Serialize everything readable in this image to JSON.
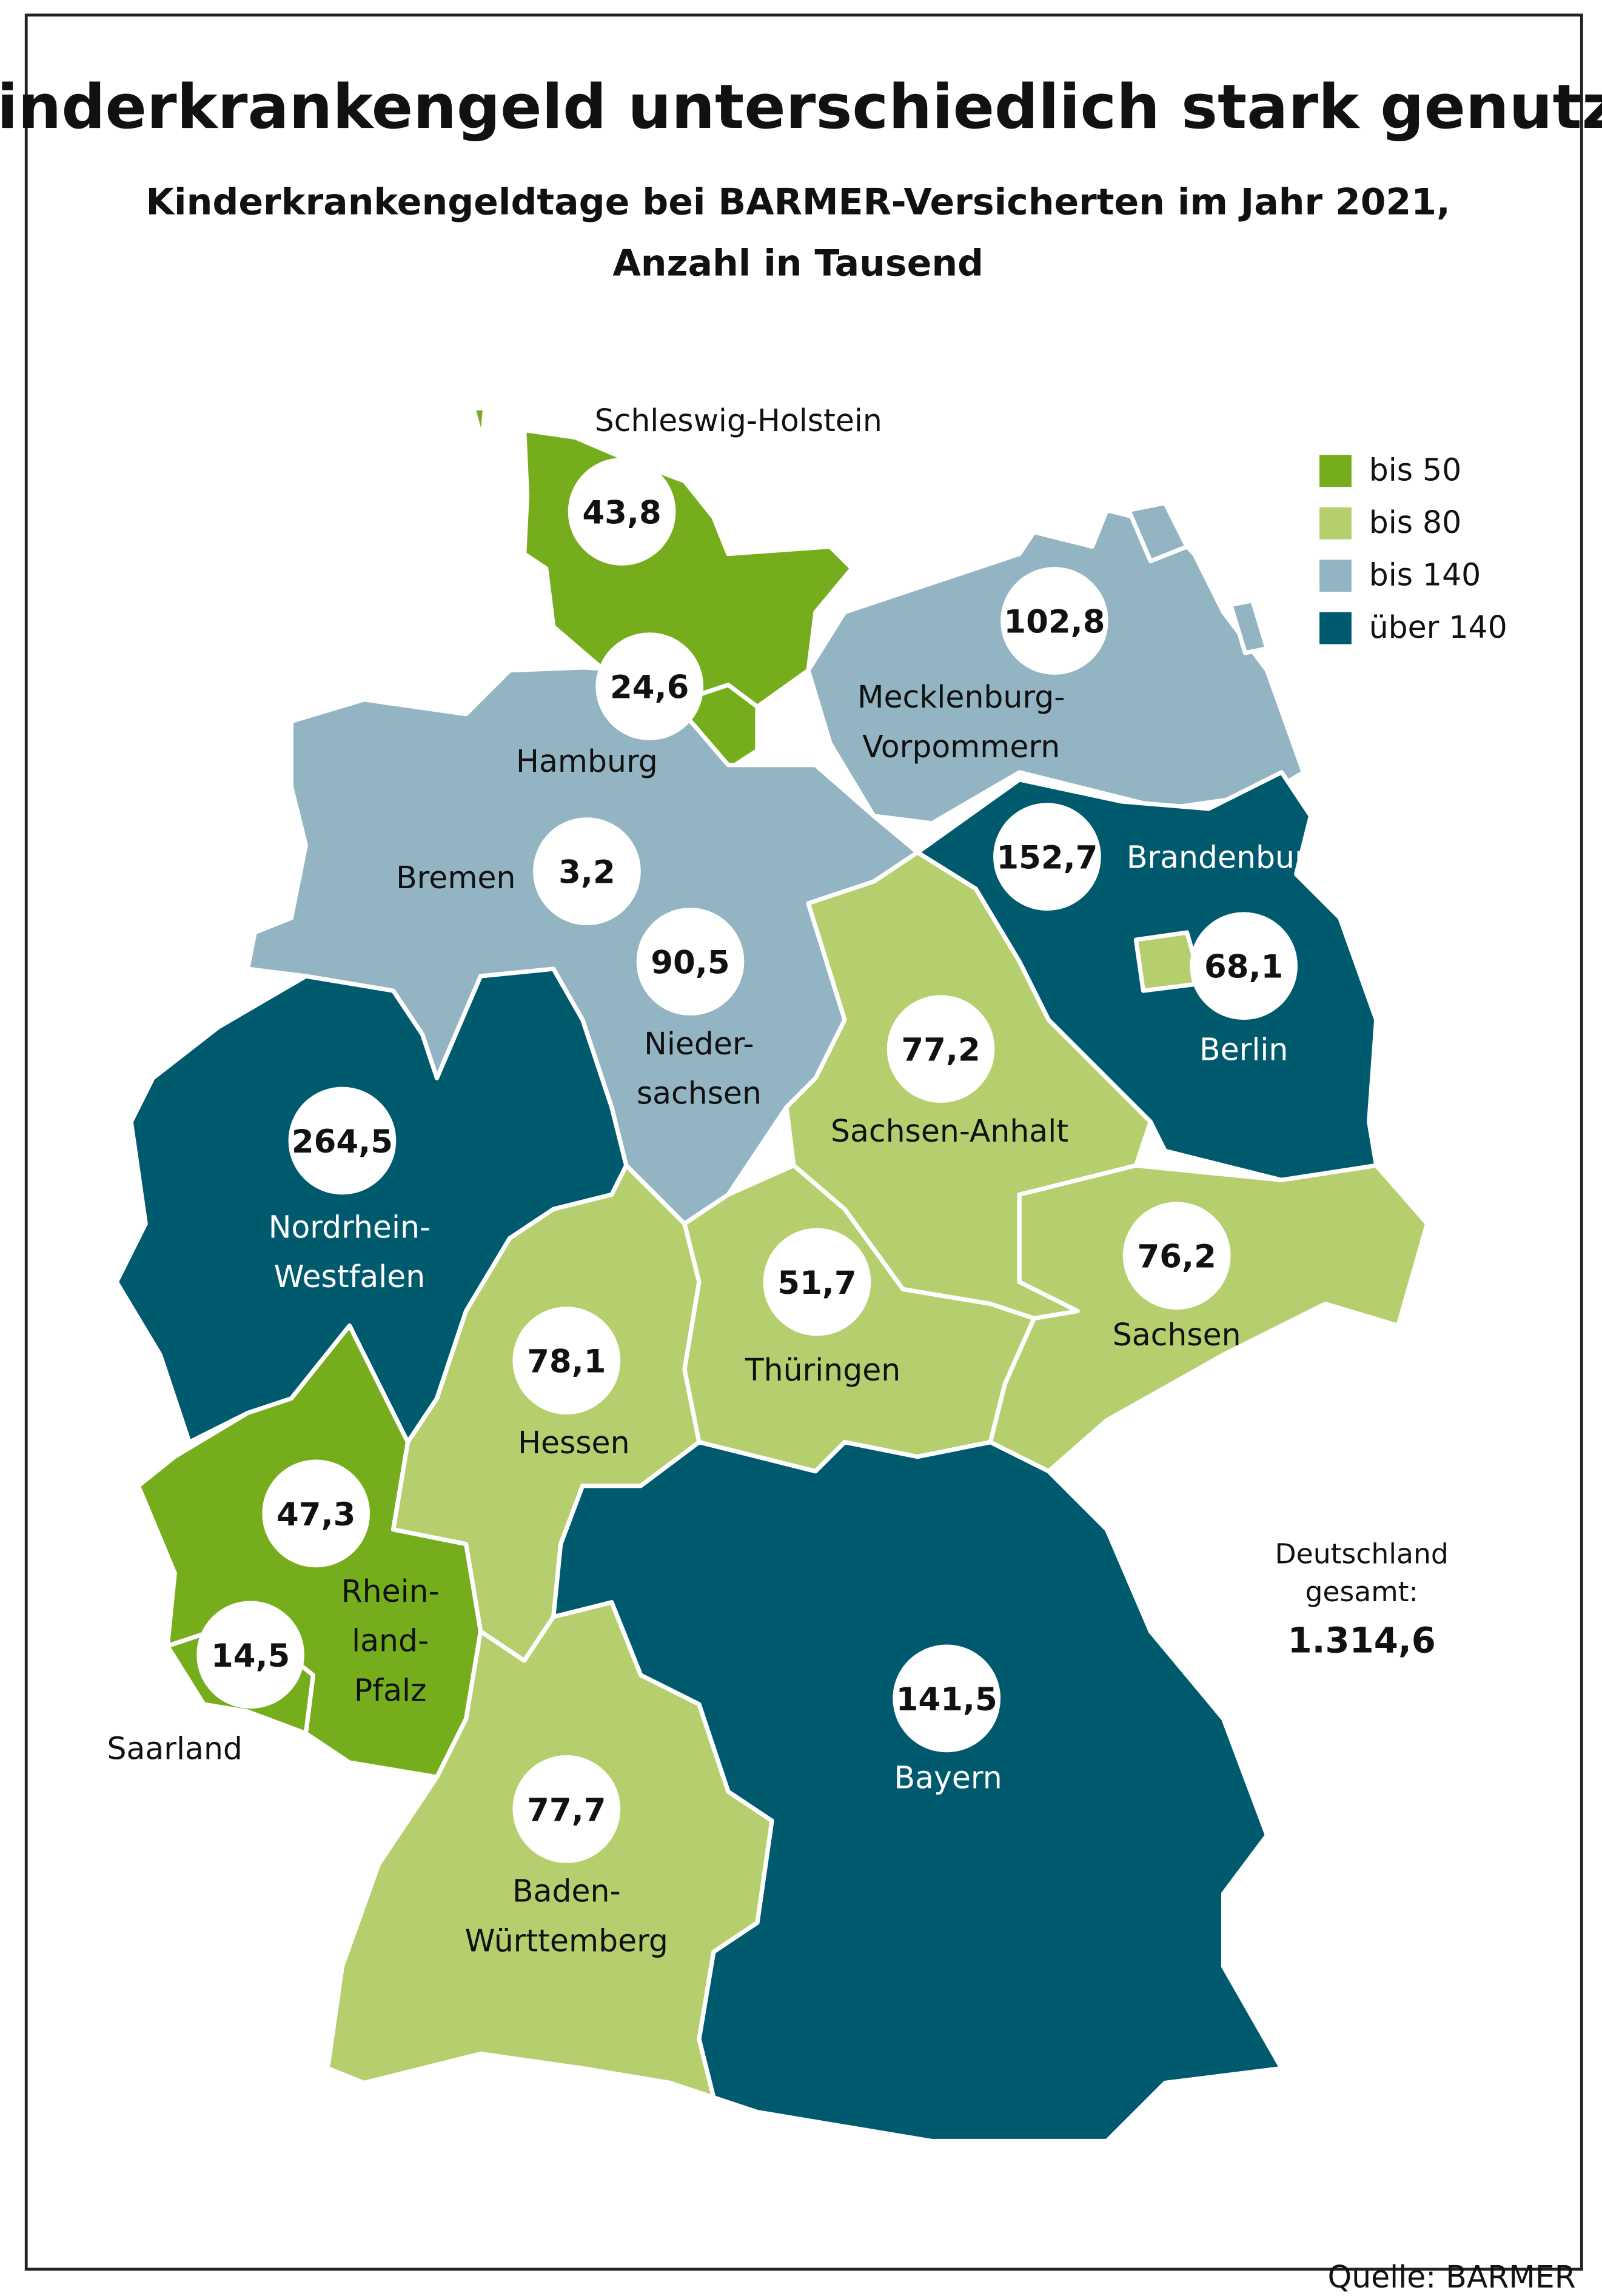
{
  "title": "Kinderkrankengeld unterschiedlich stark genutzt",
  "subtitle": [
    "Kinderkrankengeldtage bei BARMER-Versicherten im Jahr 2021,",
    "Anzahl in Tausend"
  ],
  "legend": [
    {
      "label": "bis 50",
      "color": "#76ad1c"
    },
    {
      "label": "bis 80",
      "color": "#b5cf6e"
    },
    {
      "label": "bis 140",
      "color": "#93b4c2"
    },
    {
      "label": "über 140",
      "color": "#005a6e"
    }
  ],
  "states": [
    {
      "name": [
        "Schleswig-Holstein"
      ],
      "value": "43,8",
      "color": "#76ad1c"
    },
    {
      "name": [
        "Hamburg"
      ],
      "value": "24,6",
      "color": "#76ad1c"
    },
    {
      "name": [
        "Mecklenburg-",
        "Vorpommern"
      ],
      "value": "102,8",
      "color": "#93b4c2"
    },
    {
      "name": [
        "Bremen"
      ],
      "value": "3,2",
      "color": "#76ad1c"
    },
    {
      "name": [
        "Brandenburg"
      ],
      "value": "152,7",
      "color": "#005a6e"
    },
    {
      "name": [
        "Berlin"
      ],
      "value": "68,1",
      "color": "#b5cf6e"
    },
    {
      "name": [
        "Nieder-",
        "sachsen"
      ],
      "value": "90,5",
      "color": "#93b4c2"
    },
    {
      "name": [
        "Sachsen-Anhalt"
      ],
      "value": "77,2",
      "color": "#b5cf6e"
    },
    {
      "name": [
        "Nordrhein-",
        "Westfalen"
      ],
      "value": "264,5",
      "color": "#005a6e"
    },
    {
      "name": [
        "Sachsen"
      ],
      "value": "76,2",
      "color": "#b5cf6e"
    },
    {
      "name": [
        "Thüringen"
      ],
      "value": "51,7",
      "color": "#b5cf6e"
    },
    {
      "name": [
        "Hessen"
      ],
      "value": "78,1",
      "color": "#b5cf6e"
    },
    {
      "name": [
        "Rhein-",
        "land-",
        "Pfalz"
      ],
      "value": "47,3",
      "color": "#76ad1c"
    },
    {
      "name": [
        "Saarland"
      ],
      "value": "14,5",
      "color": "#76ad1c"
    },
    {
      "name": [
        "Bayern"
      ],
      "value": "141,5",
      "color": "#005a6e"
    },
    {
      "name": [
        "Baden-",
        "Württemberg"
      ],
      "value": "77,7",
      "color": "#b5cf6e"
    }
  ],
  "total": {
    "label": [
      "Deutschland",
      "gesamt:"
    ],
    "value": "1.314,6"
  },
  "source": "Quelle: BARMER"
}
